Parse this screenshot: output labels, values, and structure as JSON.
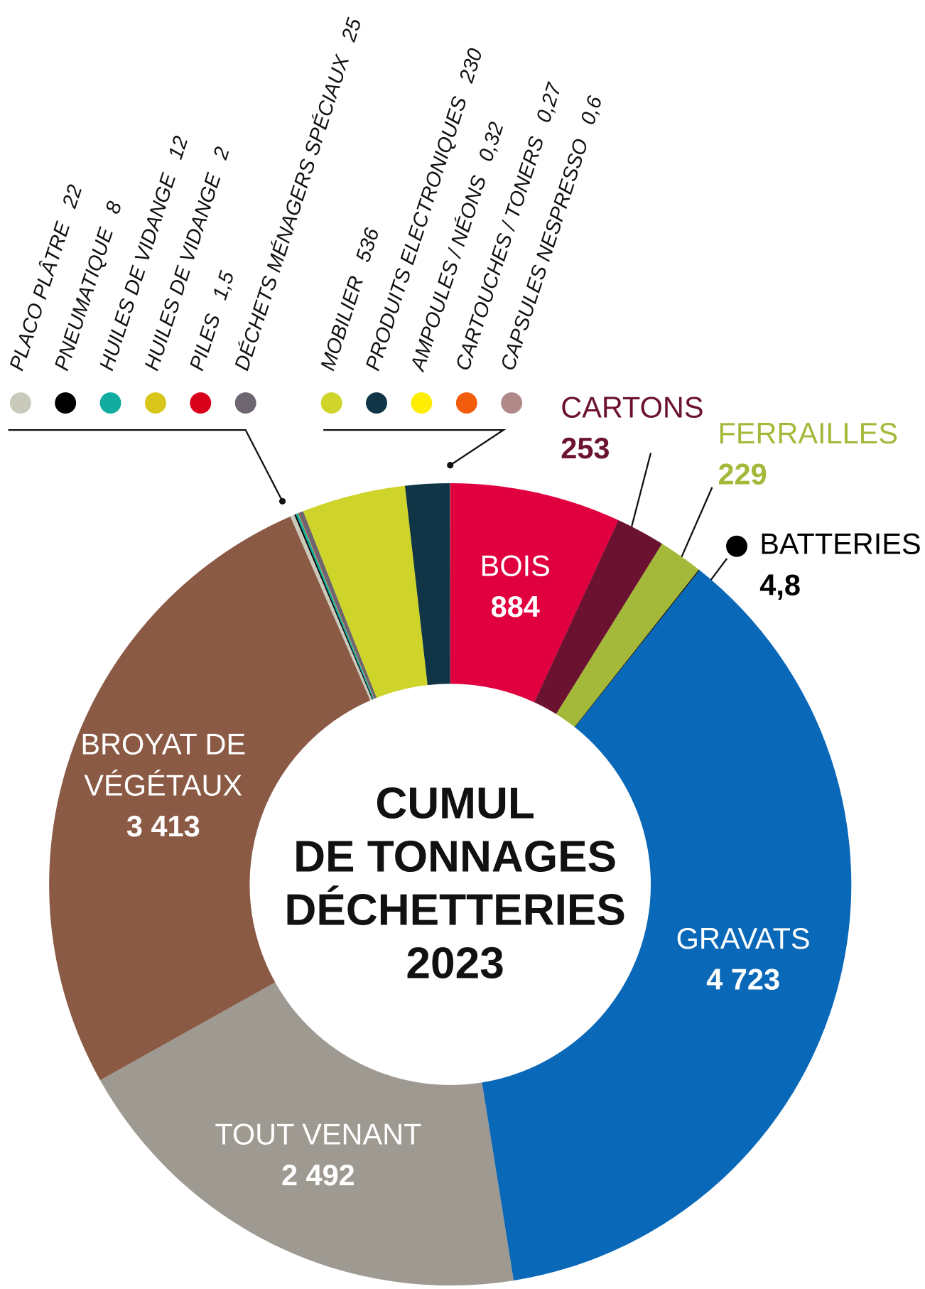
{
  "chart_data": {
    "type": "donut",
    "title": [
      "CUMUL",
      "DE TONNAGES",
      "DÉCHETTERIES",
      "2023"
    ],
    "categories": [
      "BOIS",
      "CARTONS",
      "FERRAILLES",
      "BATTERIES",
      "GRAVATS",
      "TOUT VENANT",
      "BROYAT DE VÉGÉTAUX",
      "PLACO PLÂTRE",
      "PNEUMATIQUE",
      "HUILES DE VIDANGE",
      "HUILES DE VIDANGE",
      "PILES",
      "DÉCHETS MÉNAGERS SPÉCIAUX",
      "MOBILIER",
      "PRODUITS ELECTRONIQUES",
      "AMPOULES / NÉONS",
      "CARTOUCHES / TONERS",
      "CAPSULES NESPRESSO"
    ],
    "values": [
      884,
      253,
      229,
      4.8,
      4723,
      2492,
      3413,
      22,
      8,
      12,
      2,
      1.5,
      25,
      536,
      230,
      0.32,
      0.27,
      0.6
    ],
    "value_labels": [
      "884",
      "253",
      "229",
      "4,8",
      "4 723",
      "2 492",
      "3 413",
      "22",
      "8",
      "12",
      "2",
      "1,5",
      "25",
      "536",
      "230",
      "0,32",
      "0,27",
      "0,6"
    ],
    "colors": [
      "#e0003f",
      "#6b1230",
      "#a4b93a",
      "#000000",
      "#0a68b8",
      "#9e9a92",
      "#8b5a45",
      "#c9c9bc",
      "#000000",
      "#12ada0",
      "#d9c61a",
      "#d9001b",
      "#6d6570",
      "#cfd42a",
      "#0f3547",
      "#ffee00",
      "#f25c0d",
      "#b08a88"
    ]
  }
}
